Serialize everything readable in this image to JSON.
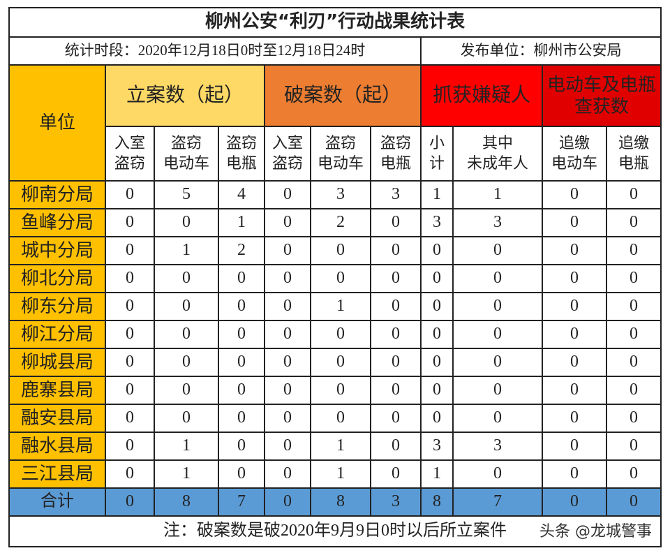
{
  "header": {
    "title": "柳州公安“利刃”行动战果统计表",
    "period": "统计时段：2020年12月18日0时至12月18日24时",
    "publisher": "发布单位：柳州市公安局"
  },
  "table": {
    "unit_header": "单位",
    "groups": [
      "立案数（起）",
      "破案数（起）",
      "抓获嫌疑人",
      "电动车及电瓶查获数"
    ],
    "subheaders": [
      "入室\n盗窃",
      "盗窃\n电动车",
      "盗窃\n电瓶",
      "入室\n盗窃",
      "盗窃\n电动车",
      "盗窃\n电瓶",
      "小\n计",
      "其中\n未成年人",
      "追缴\n电动车",
      "追缴\n电瓶"
    ],
    "rows": [
      [
        "柳南分局",
        0,
        5,
        4,
        0,
        3,
        3,
        1,
        1,
        0,
        0
      ],
      [
        "鱼峰分局",
        0,
        0,
        1,
        0,
        2,
        0,
        3,
        3,
        0,
        0
      ],
      [
        "城中分局",
        0,
        1,
        2,
        0,
        0,
        0,
        0,
        0,
        0,
        0
      ],
      [
        "柳北分局",
        0,
        0,
        0,
        0,
        0,
        0,
        0,
        0,
        0,
        0
      ],
      [
        "柳东分局",
        0,
        0,
        0,
        0,
        1,
        0,
        0,
        0,
        0,
        0
      ],
      [
        "柳江分局",
        0,
        0,
        0,
        0,
        0,
        0,
        0,
        0,
        0,
        0
      ],
      [
        "柳城县局",
        0,
        0,
        0,
        0,
        0,
        0,
        0,
        0,
        0,
        0
      ],
      [
        "鹿寨县局",
        0,
        0,
        0,
        0,
        0,
        0,
        0,
        0,
        0,
        0
      ],
      [
        "融安县局",
        0,
        0,
        0,
        0,
        0,
        0,
        0,
        0,
        0,
        0
      ],
      [
        "融水县局",
        0,
        1,
        0,
        0,
        1,
        0,
        3,
        3,
        0,
        0
      ],
      [
        "三江县局",
        0,
        1,
        0,
        0,
        1,
        0,
        1,
        0,
        0,
        0
      ]
    ],
    "total": [
      "合计",
      0,
      8,
      7,
      0,
      8,
      3,
      8,
      7,
      0,
      0
    ]
  },
  "footer": {
    "note": "注：破案数是破2020年9月9日0时以后所立案件",
    "watermark": "头条 @龙城警事"
  }
}
